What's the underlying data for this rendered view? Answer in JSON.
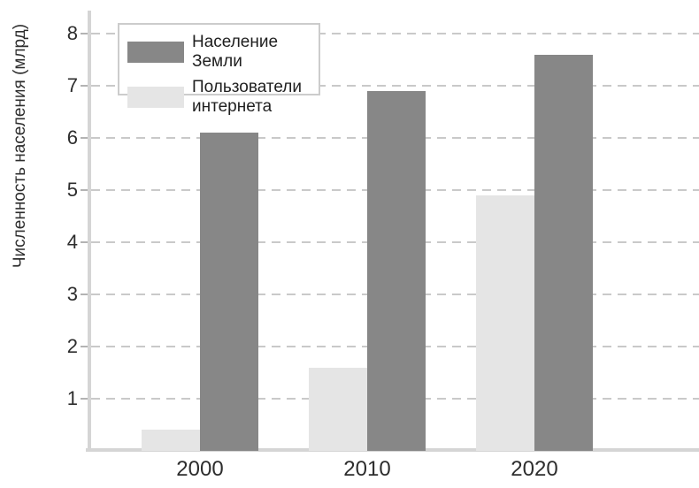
{
  "colors": {
    "background": "#ffffff",
    "axis_line": "#d5d5d5",
    "gridline": "#c9c9c9",
    "tick_mark": "#b3b3b3",
    "text": "#2d2d2d",
    "legend_border": "#cccccc",
    "population_bar": "#878787",
    "internet_bar": "#e5e5e5"
  },
  "chart_data": {
    "type": "bar",
    "title": "",
    "xlabel": "",
    "ylabel": "Численность населения (млрд)",
    "categories": [
      "2000",
      "2010",
      "2020"
    ],
    "series": [
      {
        "id": "earth-population",
        "name": "Население Земли",
        "color": "#878787",
        "values": [
          6.1,
          6.9,
          7.6
        ]
      },
      {
        "id": "internet-users",
        "name": "Пользователи интернета",
        "color": "#e5e5e5",
        "values": [
          0.4,
          1.6,
          4.9
        ]
      }
    ],
    "yticks": [
      1,
      2,
      3,
      4,
      5,
      6,
      7,
      8
    ],
    "ylim": [
      0,
      8.4
    ],
    "grid": "horizontal-dashed",
    "legend_position": "upper-left"
  }
}
